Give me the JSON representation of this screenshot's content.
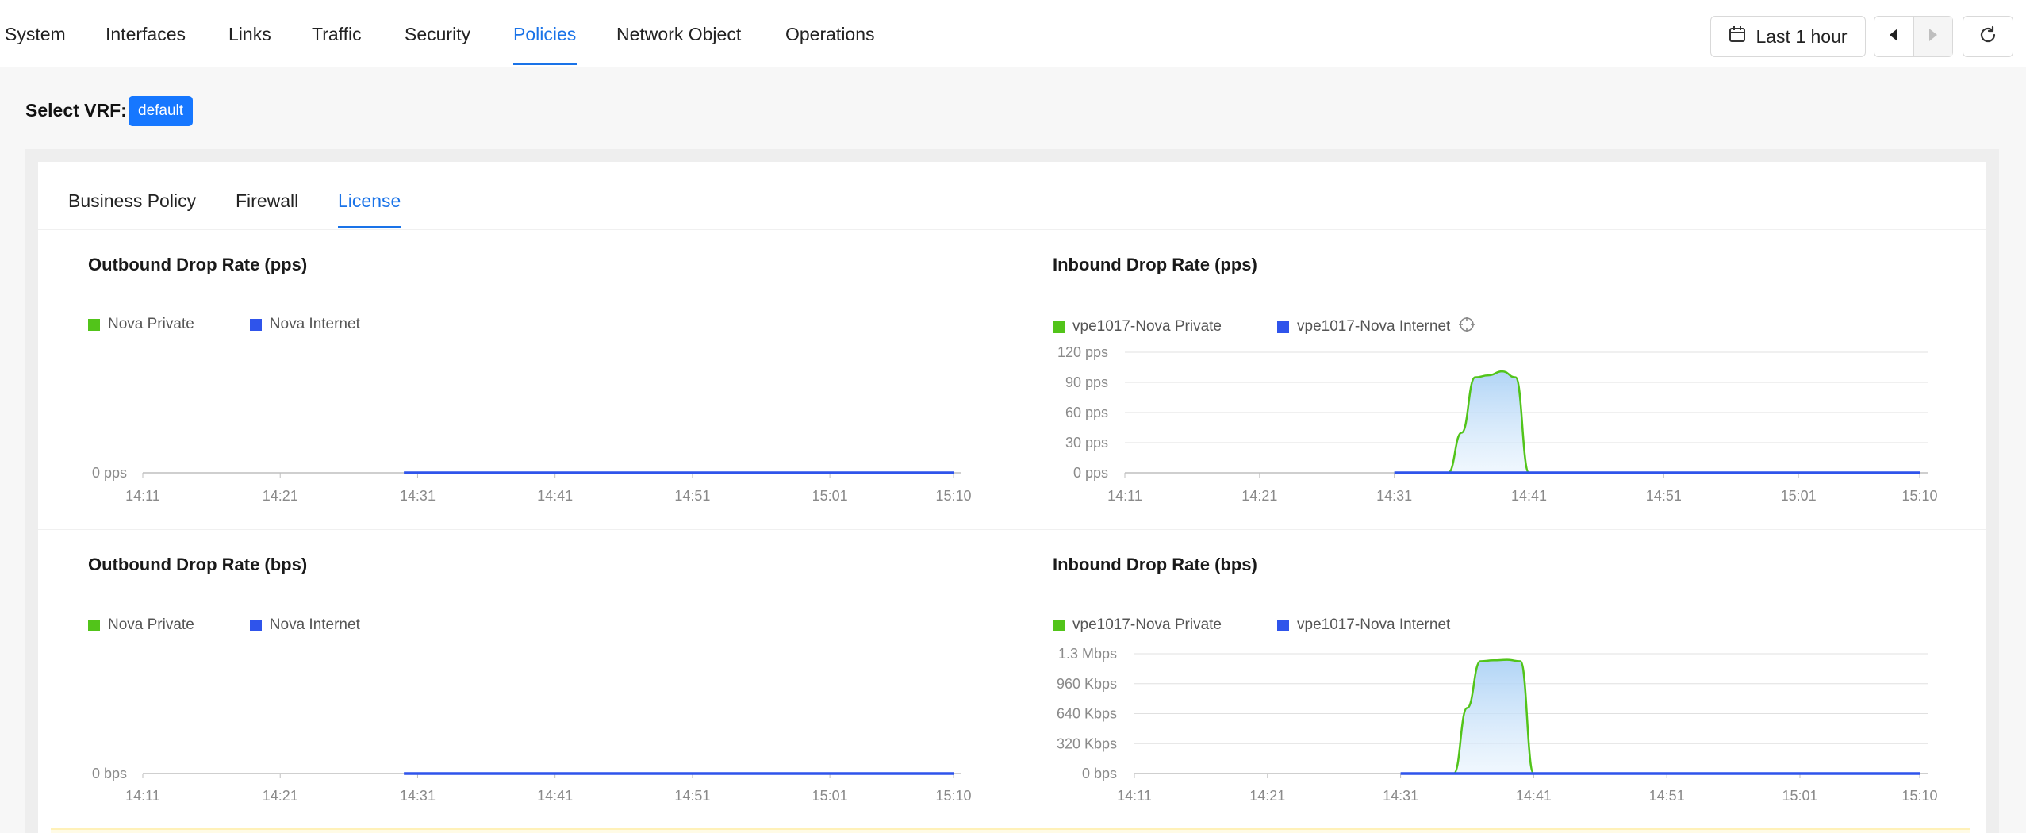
{
  "nav": {
    "items": [
      "System",
      "Interfaces",
      "Links",
      "Traffic",
      "Security",
      "Policies",
      "Network Object",
      "Operations"
    ],
    "active": "Policies"
  },
  "toolbar": {
    "time_range_label": "Last 1 hour",
    "icons": [
      "calendar-icon",
      "caret-left-icon",
      "caret-right-icon",
      "refresh-icon"
    ]
  },
  "vrf": {
    "label": "Select VRF:",
    "value": "default"
  },
  "tabs": {
    "items": [
      "Business Policy",
      "Firewall",
      "License"
    ],
    "active": "License"
  },
  "colors": {
    "accent": "#1a73e8",
    "private": "#52c41a",
    "internet": "#2f54eb"
  },
  "chart_data": [
    {
      "type": "line",
      "title": "Outbound Drop Rate (pps)",
      "x": [
        "14:11",
        "14:21",
        "14:31",
        "14:41",
        "14:51",
        "15:01",
        "15:10"
      ],
      "y_ticks": [
        "0 pps"
      ],
      "ylim": [
        0,
        1
      ],
      "series": [
        {
          "name": "Nova Private",
          "color": "#52c41a",
          "points": []
        },
        {
          "name": "Nova Internet",
          "color": "#2f54eb",
          "points": [
            [
              "14:30",
              0
            ],
            [
              "15:10",
              0
            ]
          ]
        }
      ],
      "legend": "top-left"
    },
    {
      "type": "area",
      "title": "Inbound Drop Rate (pps)",
      "x": [
        "14:11",
        "14:21",
        "14:31",
        "14:41",
        "14:51",
        "15:01",
        "15:10"
      ],
      "y_ticks": [
        "0 pps",
        "30 pps",
        "60 pps",
        "90 pps",
        "120 pps"
      ],
      "ylim": [
        0,
        120
      ],
      "series": [
        {
          "name": "vpe1017-Nova Private",
          "color": "#52c41a",
          "points": [
            [
              "14:35",
              0
            ],
            [
              "14:36",
              40
            ],
            [
              "14:37",
              95
            ],
            [
              "14:38",
              97
            ],
            [
              "14:39",
              101
            ],
            [
              "14:40",
              95
            ],
            [
              "14:41",
              0
            ]
          ]
        },
        {
          "name": "vpe1017-Nova Internet",
          "color": "#2f54eb",
          "points": [
            [
              "14:31",
              0
            ],
            [
              "15:10",
              0
            ]
          ]
        }
      ],
      "legend": "top-left"
    },
    {
      "type": "line",
      "title": "Outbound Drop Rate (bps)",
      "x": [
        "14:11",
        "14:21",
        "14:31",
        "14:41",
        "14:51",
        "15:01",
        "15:10"
      ],
      "y_ticks": [
        "0 bps"
      ],
      "ylim": [
        0,
        1
      ],
      "series": [
        {
          "name": "Nova Private",
          "color": "#52c41a",
          "points": []
        },
        {
          "name": "Nova Internet",
          "color": "#2f54eb",
          "points": [
            [
              "14:30",
              0
            ],
            [
              "15:10",
              0
            ]
          ]
        }
      ],
      "legend": "top-left"
    },
    {
      "type": "area",
      "title": "Inbound Drop Rate (bps)",
      "x": [
        "14:11",
        "14:21",
        "14:31",
        "14:41",
        "14:51",
        "15:01",
        "15:10"
      ],
      "y_ticks": [
        "0 bps",
        "320 Kbps",
        "640 Kbps",
        "960 Kbps",
        "1.3 Mbps"
      ],
      "ylim": [
        0,
        1280
      ],
      "y_unit": "Kbps",
      "series": [
        {
          "name": "vpe1017-Nova Private",
          "color": "#52c41a",
          "points": [
            [
              "14:35",
              0
            ],
            [
              "14:36",
              700
            ],
            [
              "14:37",
              1200
            ],
            [
              "14:38",
              1210
            ],
            [
              "14:39",
              1215
            ],
            [
              "14:40",
              1200
            ],
            [
              "14:41",
              0
            ]
          ]
        },
        {
          "name": "vpe1017-Nova Internet",
          "color": "#2f54eb",
          "points": [
            [
              "14:31",
              0
            ],
            [
              "15:10",
              0
            ]
          ]
        }
      ],
      "legend": "top-left"
    }
  ]
}
